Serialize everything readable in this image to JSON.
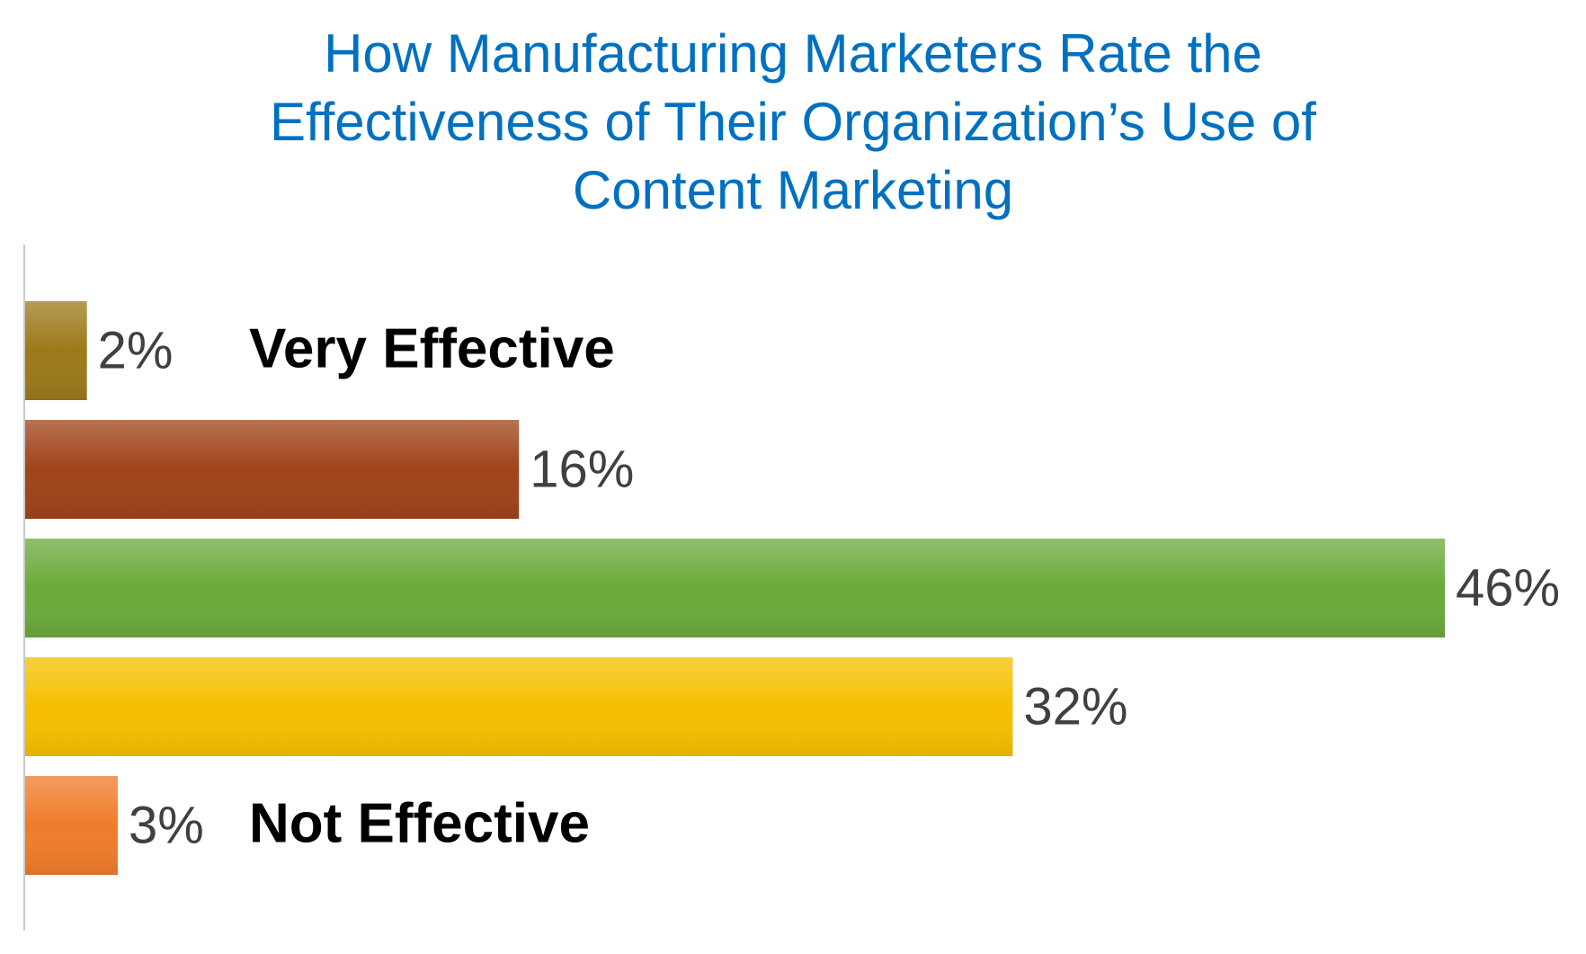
{
  "chart_data": {
    "type": "bar",
    "orientation": "horizontal",
    "title": "How Manufacturing Marketers Rate the Effectiveness of Their Organization’s Use of Content Marketing",
    "categories": [
      "Very Effective",
      null,
      null,
      null,
      "Not Effective"
    ],
    "values": [
      2,
      16,
      46,
      32,
      3
    ],
    "value_labels": [
      "2%",
      "16%",
      "46%",
      "32%",
      "3%"
    ],
    "colors": [
      "#9c7a1a",
      "#a0431a",
      "#6aaa3a",
      "#f5c000",
      "#f07c2a"
    ]
  }
}
